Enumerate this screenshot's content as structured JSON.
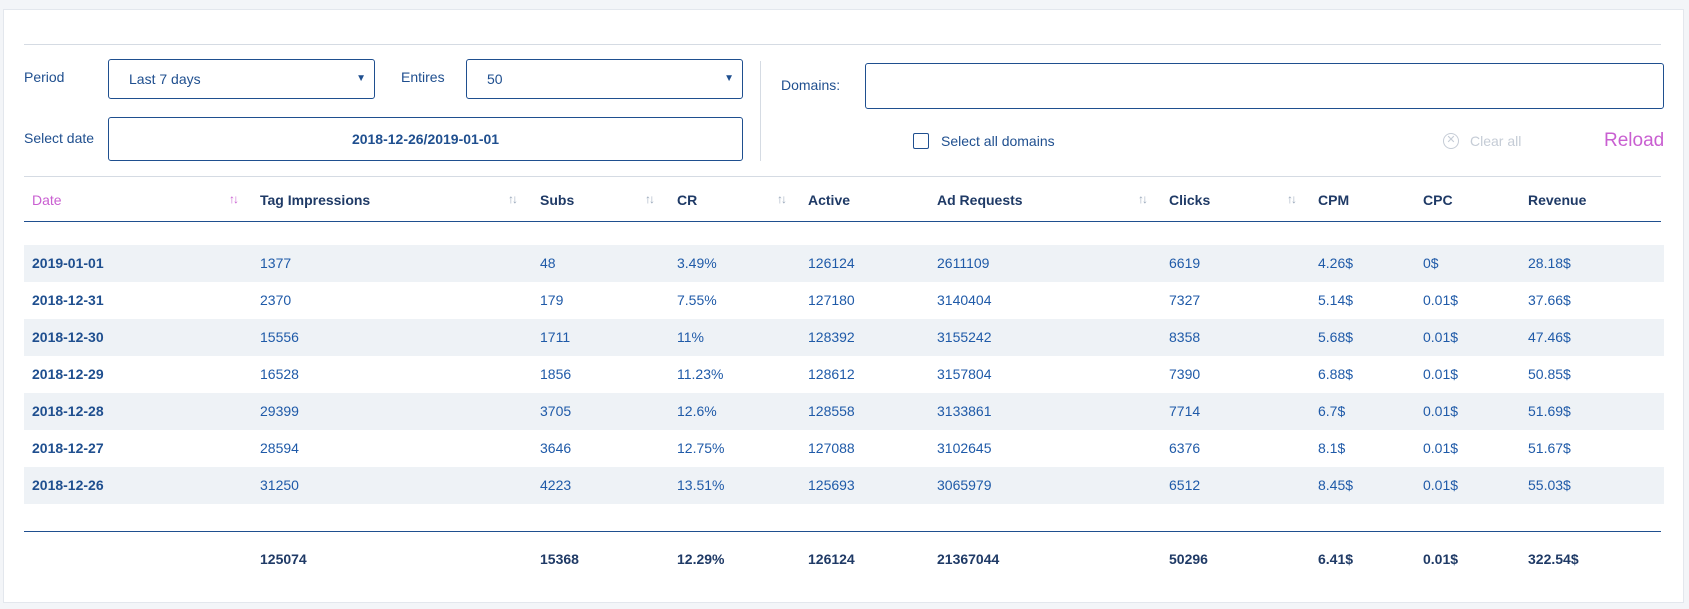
{
  "filters": {
    "period_label": "Period",
    "period_value": "Last 7 days",
    "entries_label": "Entires",
    "entries_value": "50",
    "select_date_label": "Select date",
    "date_range": "2018-12-26/2019-01-01",
    "domains_label": "Domains:",
    "domains_value": "",
    "select_all_label": "Select all domains",
    "clear_all_label": "Clear all",
    "reload_label": "Reload"
  },
  "table": {
    "headers": [
      "Date",
      "Tag Impressions",
      "Subs",
      "CR",
      "Active",
      "Ad Requests",
      "Clicks",
      "CPM",
      "CPC",
      "Revenue"
    ],
    "rows": [
      [
        "2019-01-01",
        "1377",
        "48",
        "3.49%",
        "126124",
        "2611109",
        "6619",
        "4.26$",
        "0$",
        "28.18$"
      ],
      [
        "2018-12-31",
        "2370",
        "179",
        "7.55%",
        "127180",
        "3140404",
        "7327",
        "5.14$",
        "0.01$",
        "37.66$"
      ],
      [
        "2018-12-30",
        "15556",
        "1711",
        "11%",
        "128392",
        "3155242",
        "8358",
        "5.68$",
        "0.01$",
        "47.46$"
      ],
      [
        "2018-12-29",
        "16528",
        "1856",
        "11.23%",
        "128612",
        "3157804",
        "7390",
        "6.88$",
        "0.01$",
        "50.85$"
      ],
      [
        "2018-12-28",
        "29399",
        "3705",
        "12.6%",
        "128558",
        "3133861",
        "7714",
        "6.7$",
        "0.01$",
        "51.69$"
      ],
      [
        "2018-12-27",
        "28594",
        "3646",
        "12.75%",
        "127088",
        "3102645",
        "6376",
        "8.1$",
        "0.01$",
        "51.67$"
      ],
      [
        "2018-12-26",
        "31250",
        "4223",
        "13.51%",
        "125693",
        "3065979",
        "6512",
        "8.45$",
        "0.01$",
        "55.03$"
      ]
    ],
    "totals": [
      "",
      "125074",
      "15368",
      "12.29%",
      "126124",
      "21367044",
      "50296",
      "6.41$",
      "0.01$",
      "322.54$"
    ]
  },
  "colors": {
    "primary": "#1f4f8f",
    "accent": "#c95fd1",
    "row_alt": "#eef2f6",
    "muted": "#c5ccd6"
  }
}
